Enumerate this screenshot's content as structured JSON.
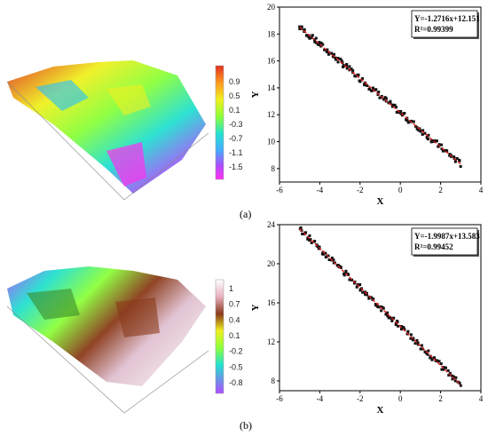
{
  "panel_labels": {
    "a": "(a)",
    "b": "(b)"
  },
  "colors": {
    "scatter_points": "#111111",
    "fit_line": "#d62020",
    "colorbar": [
      "#ff2ff0",
      "#b04cff",
      "#4aa8ff",
      "#22e0d0",
      "#8cff3a",
      "#f0f020",
      "#ff9a20",
      "#e03020"
    ]
  },
  "surfaces": [
    {
      "id": "a",
      "colorbar_ticks": [
        "0.9",
        "0.5",
        "0.1",
        "-0.3",
        "-0.7",
        "-1.1",
        "-1.5"
      ]
    },
    {
      "id": "b",
      "colorbar_ticks": [
        "1",
        "0.7",
        "0.4",
        "0.1",
        "-0.2",
        "-0.5",
        "-0.8"
      ]
    }
  ],
  "chart_data": [
    {
      "type": "scatter",
      "title": "",
      "xlabel": "X",
      "ylabel": "Y",
      "xlim": [
        -6,
        4
      ],
      "ylim": [
        7,
        20
      ],
      "xticks": [
        "-6",
        "-4",
        "-2",
        "0",
        "2",
        "4"
      ],
      "yticks": [
        "8",
        "10",
        "12",
        "14",
        "16",
        "18",
        "20"
      ],
      "fit": {
        "slope": -1.2716,
        "intercept": 12.151,
        "x_range": [
          -5,
          3
        ]
      },
      "annotation": [
        "Y=-1.2716x+12.151",
        "R²=0.99399"
      ],
      "legend_position": "top-right"
    },
    {
      "type": "scatter",
      "title": "",
      "xlabel": "X",
      "ylabel": "Y",
      "xlim": [
        -6,
        4
      ],
      "ylim": [
        7,
        24
      ],
      "xticks": [
        "-6",
        "-4",
        "-2",
        "0",
        "2",
        "4"
      ],
      "yticks": [
        "8",
        "12",
        "16",
        "20",
        "24"
      ],
      "fit": {
        "slope": -1.9987,
        "intercept": 13.583,
        "x_range": [
          -5,
          3
        ]
      },
      "annotation": [
        "Y=-1.9987x+13.583",
        "R²=0.99452"
      ],
      "legend_position": "top-right"
    }
  ]
}
